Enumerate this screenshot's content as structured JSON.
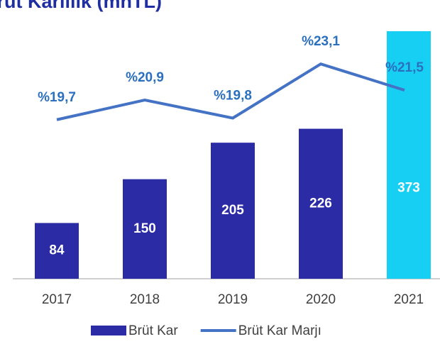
{
  "chart_data": {
    "type": "bar-line",
    "title": "Brüt Karlılık (mnTL)",
    "categories": [
      "2017",
      "2018",
      "2019",
      "2020",
      "2021"
    ],
    "ylim": [
      0,
      420
    ],
    "y2lim": [
      10,
      27
    ],
    "series": [
      {
        "name": "Brüt Kar",
        "type": "bar",
        "color": "#2b2ba6",
        "colors": [
          "#2b2ba6",
          "#2b2ba6",
          "#2b2ba6",
          "#2b2ba6",
          "#17cff3"
        ],
        "values": [
          84,
          150,
          205,
          226,
          373
        ]
      },
      {
        "name": "Brüt Kar Marjı",
        "type": "line",
        "axis": "y2",
        "color": "#4472c4",
        "values": [
          19.7,
          20.9,
          19.8,
          23.1,
          21.5
        ],
        "value_labels": [
          "%19,7",
          "%20,9",
          "%19,8",
          "%23,1",
          "%21,5"
        ]
      }
    ]
  }
}
